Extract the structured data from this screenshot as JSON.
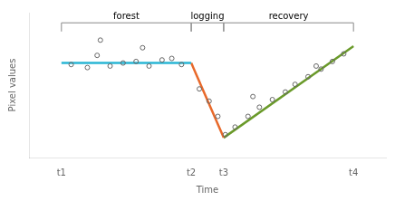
{
  "chart_data": {
    "type": "scatter",
    "xlabel": "Time",
    "ylabel": "Pixel values",
    "xlim": [
      0.0,
      11.0
    ],
    "ylim": [
      0.0,
      0.95
    ],
    "xticks": [
      {
        "value": 1,
        "label": "t1"
      },
      {
        "value": 5,
        "label": "t2"
      },
      {
        "value": 6,
        "label": "t3"
      },
      {
        "value": 10,
        "label": "t4"
      }
    ],
    "tick_labels": "x",
    "grid": false,
    "series": [
      {
        "type": "line",
        "color": "#29b6d4",
        "x": [
          1,
          5
        ],
        "values": [
          0.62,
          0.62
        ]
      },
      {
        "type": "line",
        "color": "#e8692a",
        "x": [
          5,
          6
        ],
        "values": [
          0.62,
          0.13
        ]
      },
      {
        "type": "line",
        "color": "#6a9a2a",
        "x": [
          6,
          10
        ],
        "values": [
          0.13,
          0.73
        ]
      },
      {
        "type": "scatter",
        "marker": "circle",
        "color": "#666666",
        "x": [
          1.3,
          1.8,
          2.1,
          2.5,
          2.9,
          3.3,
          3.7,
          4.1,
          4.4,
          4.7,
          2.2,
          3.5
        ],
        "values": [
          0.61,
          0.59,
          0.67,
          0.6,
          0.62,
          0.63,
          0.6,
          0.64,
          0.65,
          0.61,
          0.77,
          0.72
        ]
      },
      {
        "type": "scatter",
        "marker": "circle",
        "color": "#666666",
        "x": [
          5.25,
          5.55,
          5.82
        ],
        "values": [
          0.45,
          0.37,
          0.27
        ]
      },
      {
        "type": "scatter",
        "marker": "circle",
        "color": "#666666",
        "x": [
          6.05,
          6.35,
          6.75,
          7.1,
          7.5,
          7.9,
          8.2,
          8.6,
          9.0,
          9.35,
          9.7,
          6.9,
          8.85
        ],
        "values": [
          0.15,
          0.2,
          0.27,
          0.33,
          0.38,
          0.43,
          0.48,
          0.53,
          0.58,
          0.63,
          0.68,
          0.4,
          0.6
        ]
      }
    ],
    "annotations": [
      {
        "text": "forest",
        "x_start": 1,
        "x_end": 5,
        "color": "#888888"
      },
      {
        "text": "logging",
        "x_start": 5,
        "x_end": 6,
        "color": "#888888"
      },
      {
        "text": "recovery",
        "x_start": 6,
        "x_end": 10,
        "color": "#888888"
      }
    ]
  }
}
